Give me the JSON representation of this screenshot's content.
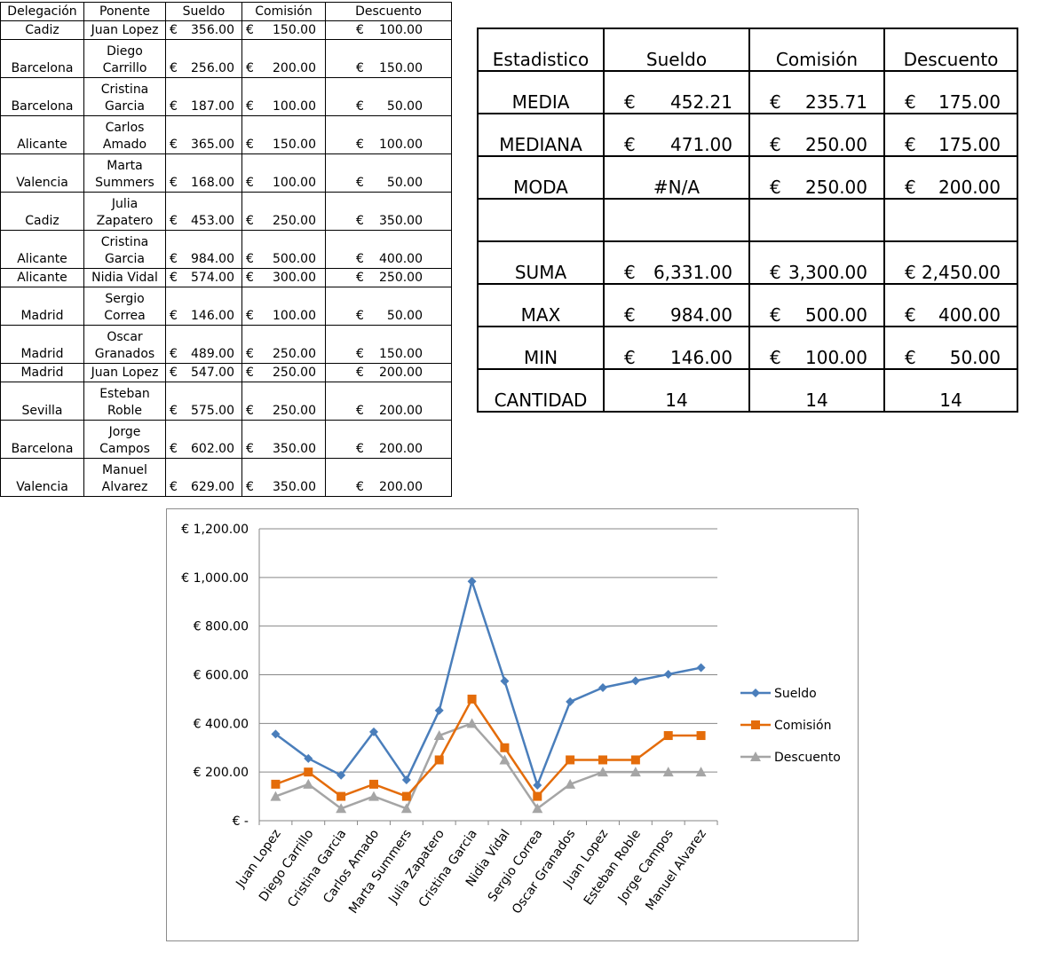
{
  "data_table": {
    "headers": [
      "Delegación",
      "Ponente",
      "Sueldo",
      "Comisión",
      "Descuento"
    ],
    "currency_symbol": "€",
    "rows": [
      {
        "delegacion": "Cadiz",
        "ponente": "Juan Lopez",
        "sueldo": "356.00",
        "comision": "150.00",
        "descuento": "100.00"
      },
      {
        "delegacion": "Barcelona",
        "ponente": "Diego Carrillo",
        "sueldo": "256.00",
        "comision": "200.00",
        "descuento": "150.00"
      },
      {
        "delegacion": "Barcelona",
        "ponente": "Cristina Garcia",
        "sueldo": "187.00",
        "comision": "100.00",
        "descuento": "50.00"
      },
      {
        "delegacion": "Alicante",
        "ponente": "Carlos Amado",
        "sueldo": "365.00",
        "comision": "150.00",
        "descuento": "100.00"
      },
      {
        "delegacion": "Valencia",
        "ponente": "Marta Summers",
        "sueldo": "168.00",
        "comision": "100.00",
        "descuento": "50.00"
      },
      {
        "delegacion": "Cadiz",
        "ponente": "Julia Zapatero",
        "sueldo": "453.00",
        "comision": "250.00",
        "descuento": "350.00"
      },
      {
        "delegacion": "Alicante",
        "ponente": "Cristina Garcia",
        "sueldo": "984.00",
        "comision": "500.00",
        "descuento": "400.00"
      },
      {
        "delegacion": "Alicante",
        "ponente": "Nidia Vidal",
        "sueldo": "574.00",
        "comision": "300.00",
        "descuento": "250.00"
      },
      {
        "delegacion": "Madrid",
        "ponente": "Sergio Correa",
        "sueldo": "146.00",
        "comision": "100.00",
        "descuento": "50.00"
      },
      {
        "delegacion": "Madrid",
        "ponente": "Oscar Granados",
        "sueldo": "489.00",
        "comision": "250.00",
        "descuento": "150.00"
      },
      {
        "delegacion": "Madrid",
        "ponente": "Juan Lopez",
        "sueldo": "547.00",
        "comision": "250.00",
        "descuento": "200.00"
      },
      {
        "delegacion": "Sevilla",
        "ponente": "Esteban Roble",
        "sueldo": "575.00",
        "comision": "250.00",
        "descuento": "200.00"
      },
      {
        "delegacion": "Barcelona",
        "ponente": "Jorge Campos",
        "sueldo": "602.00",
        "comision": "350.00",
        "descuento": "200.00"
      },
      {
        "delegacion": "Valencia",
        "ponente": "Manuel Alvarez",
        "sueldo": "629.00",
        "comision": "350.00",
        "descuento": "200.00"
      }
    ]
  },
  "stats_table": {
    "headers": [
      "Estadistico",
      "Sueldo",
      "Comisión",
      "Descuento"
    ],
    "currency_symbol": "€",
    "rows": [
      {
        "label": "MEDIA",
        "sueldo": "452.21",
        "comision": "235.71",
        "descuento": "175.00"
      },
      {
        "label": "MEDIANA",
        "sueldo": "471.00",
        "comision": "250.00",
        "descuento": "175.00"
      },
      {
        "label": "MODA",
        "sueldo": "#N/A",
        "comision": "250.00",
        "descuento": "200.00"
      },
      {
        "label": "",
        "sueldo": "",
        "comision": "",
        "descuento": ""
      },
      {
        "label": "SUMA",
        "sueldo": "6,331.00",
        "comision": "3,300.00",
        "descuento": "2,450.00"
      },
      {
        "label": "MAX",
        "sueldo": "984.00",
        "comision": "500.00",
        "descuento": "400.00"
      },
      {
        "label": "MIN",
        "sueldo": "146.00",
        "comision": "100.00",
        "descuento": "50.00"
      },
      {
        "label": "CANTIDAD",
        "sueldo": "14",
        "comision": "14",
        "descuento": "14"
      }
    ]
  },
  "chart_data": {
    "type": "line",
    "categories": [
      "Juan Lopez",
      "Diego Carrillo",
      "Cristina Garcia",
      "Carlos Amado",
      "Marta Summers",
      "Julia Zapatero",
      "Cristina Garcia",
      "Nidia Vidal",
      "Sergio Correa",
      "Oscar Granados",
      "Juan Lopez",
      "Esteban Roble",
      "Jorge Campos",
      "Manuel Alvarez"
    ],
    "series": [
      {
        "name": "Sueldo",
        "color": "#4a7ebb",
        "marker": "diamond",
        "values": [
          356,
          256,
          187,
          365,
          168,
          453,
          984,
          574,
          146,
          489,
          547,
          575,
          602,
          629
        ]
      },
      {
        "name": "Comisión",
        "color": "#e46c0a",
        "marker": "square",
        "values": [
          150,
          200,
          100,
          150,
          100,
          250,
          500,
          300,
          100,
          250,
          250,
          250,
          350,
          350
        ]
      },
      {
        "name": "Descuento",
        "color": "#a5a5a5",
        "marker": "triangle",
        "values": [
          100,
          150,
          50,
          100,
          50,
          350,
          400,
          250,
          50,
          150,
          200,
          200,
          200,
          200
        ]
      }
    ],
    "y_ticks": [
      0,
      200,
      400,
      600,
      800,
      1000,
      1200
    ],
    "y_tick_labels": [
      "€ -",
      "€ 200.00",
      "€ 400.00",
      "€ 600.00",
      "€ 800.00",
      "€ 1,000.00",
      "€ 1,200.00"
    ],
    "ylim": [
      0,
      1200
    ],
    "grid": true,
    "legend": "right",
    "title": "",
    "xlabel": "",
    "ylabel": ""
  }
}
